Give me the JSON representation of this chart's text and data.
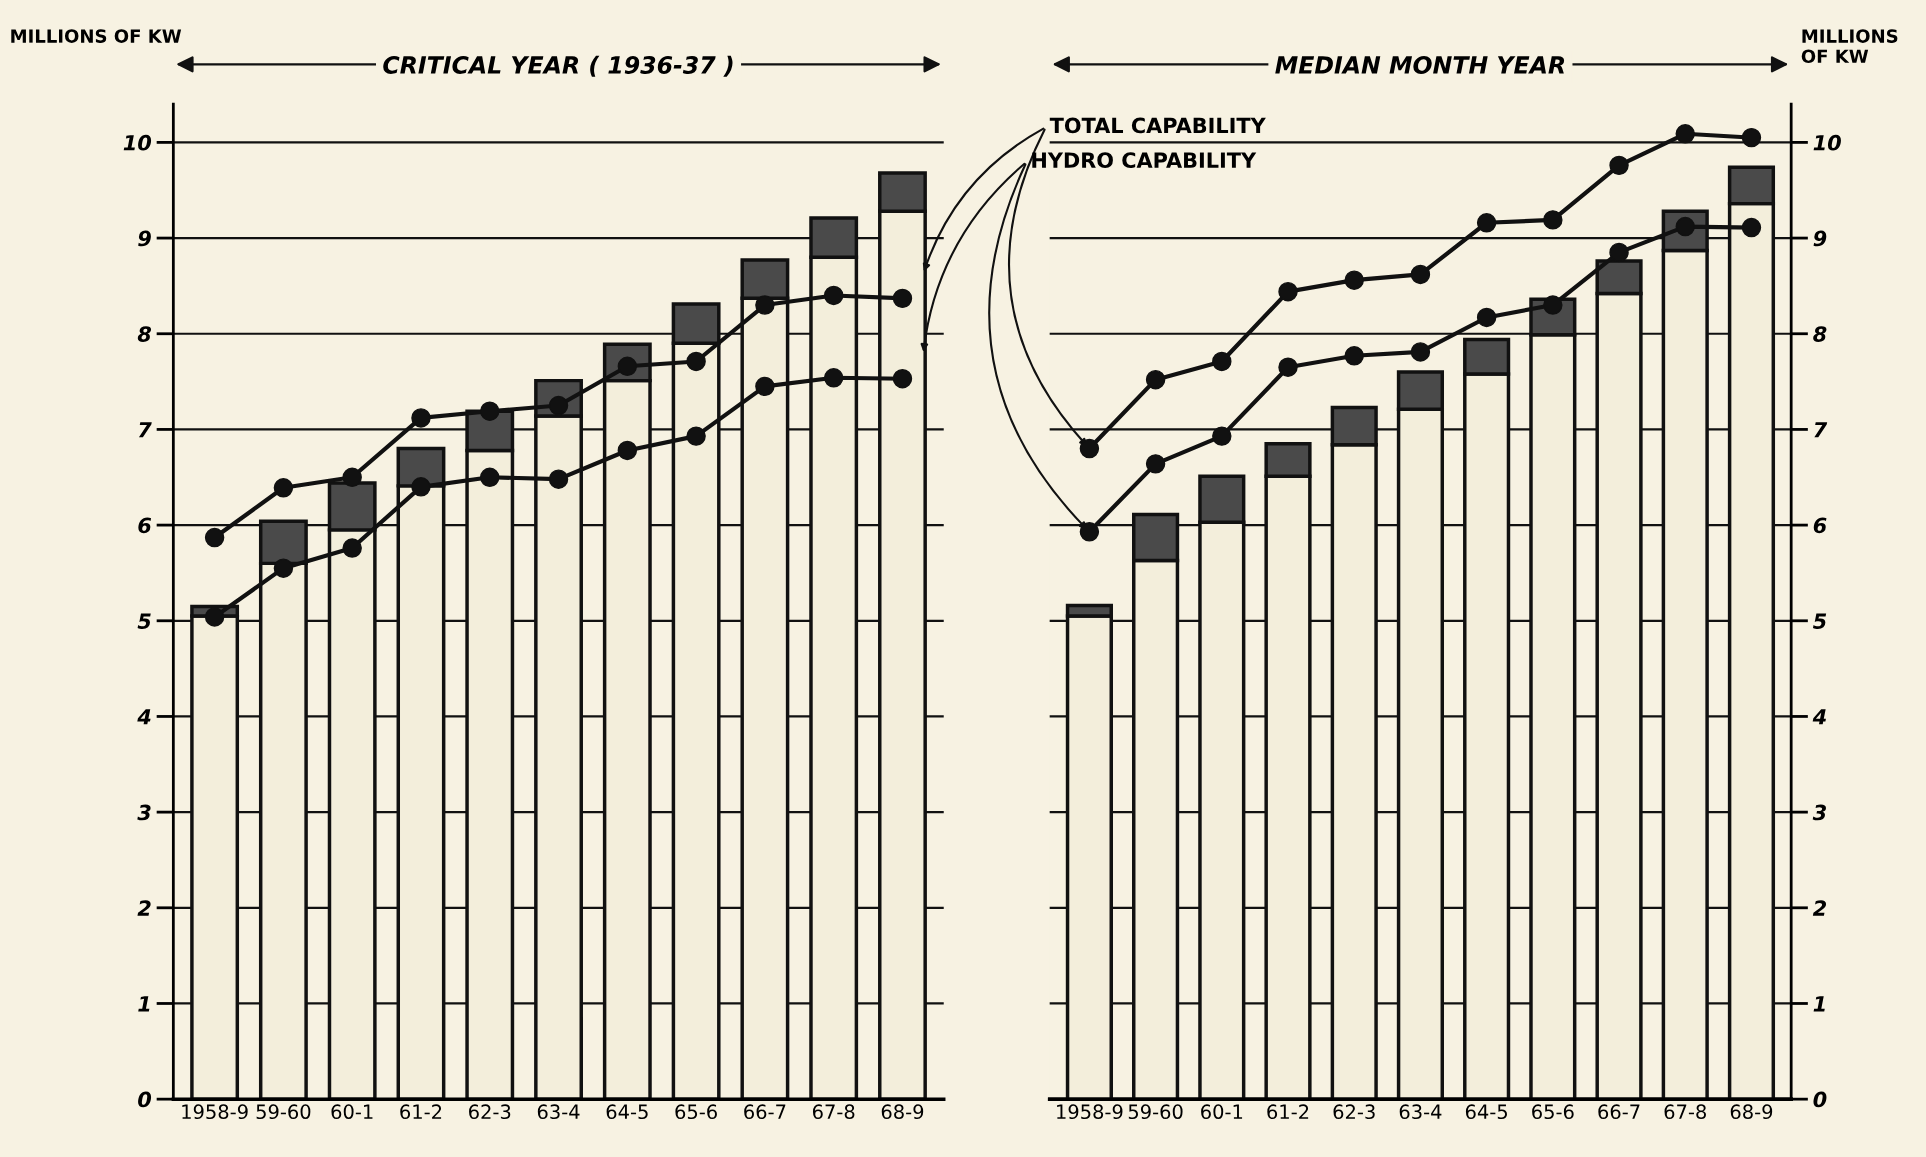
{
  "chart_data": [
    {
      "type": "bar",
      "stacked": true,
      "title": "CRITICAL YEAR ( 1936-37 )",
      "ylabel": "MILLIONS OF KW",
      "categories": [
        "1958-9",
        "59-60",
        "60-1",
        "61-2",
        "62-3",
        "63-4",
        "64-5",
        "65-6",
        "66-7",
        "67-8",
        "68-9"
      ],
      "ylim": [
        0,
        10.4
      ],
      "yticks": [
        0,
        1,
        2,
        3,
        4,
        5,
        6,
        7,
        8,
        9,
        10
      ],
      "grid": "y",
      "marker": "circle",
      "series": [
        {
          "color": "#f3eedb",
          "values": [
            5.05,
            5.6,
            5.95,
            6.41,
            6.78,
            7.14,
            7.51,
            7.9,
            8.37,
            8.8,
            9.28
          ]
        },
        {
          "color": "#4a4a4a",
          "values": [
            0.1,
            0.44,
            0.49,
            0.39,
            0.41,
            0.37,
            0.38,
            0.41,
            0.4,
            0.41,
            0.4
          ]
        },
        {
          "type": "line",
          "color": "#111111",
          "values": [
            5.87,
            6.39,
            6.5,
            7.12,
            7.19,
            7.25,
            7.66,
            7.71,
            8.3,
            8.4,
            8.37
          ]
        },
        {
          "type": "line",
          "color": "#111111",
          "values": [
            5.04,
            5.55,
            5.76,
            6.4,
            6.5,
            6.48,
            6.78,
            6.93,
            7.45,
            7.54,
            7.53
          ]
        }
      ]
    },
    {
      "type": "bar",
      "stacked": true,
      "title": "MEDIAN MONTH YEAR",
      "y2label": "MILLIONS OF KW",
      "categories": [
        "1958-9",
        "59-60",
        "60-1",
        "61-2",
        "62-3",
        "63-4",
        "64-5",
        "65-6",
        "66-7",
        "67-8",
        "68-9"
      ],
      "y2lim": [
        0,
        10.4
      ],
      "y2ticks": [
        0,
        1,
        2,
        3,
        4,
        5,
        6,
        7,
        8,
        9,
        10
      ],
      "grid": "y",
      "marker": "circle",
      "series": [
        {
          "axis": "y2",
          "color": "#f3eedb",
          "values": [
            5.05,
            5.63,
            6.03,
            6.51,
            6.84,
            7.21,
            7.58,
            7.99,
            8.42,
            8.87,
            9.36
          ]
        },
        {
          "axis": "y2",
          "color": "#4a4a4a",
          "values": [
            0.11,
            0.48,
            0.48,
            0.34,
            0.39,
            0.39,
            0.36,
            0.37,
            0.34,
            0.41,
            0.38
          ]
        },
        {
          "axis": "y2",
          "type": "line",
          "name": "TOTAL CAPABILITY",
          "color": "#111111",
          "values": [
            6.8,
            7.52,
            7.71,
            8.44,
            8.56,
            8.62,
            9.16,
            9.19,
            9.76,
            10.09,
            10.05
          ]
        },
        {
          "axis": "y2",
          "type": "line",
          "name": "HYDRO CAPABILITY",
          "color": "#111111",
          "values": [
            5.93,
            6.64,
            6.93,
            7.65,
            7.77,
            7.81,
            8.17,
            8.3,
            8.85,
            9.12,
            9.11
          ]
        }
      ]
    }
  ]
}
